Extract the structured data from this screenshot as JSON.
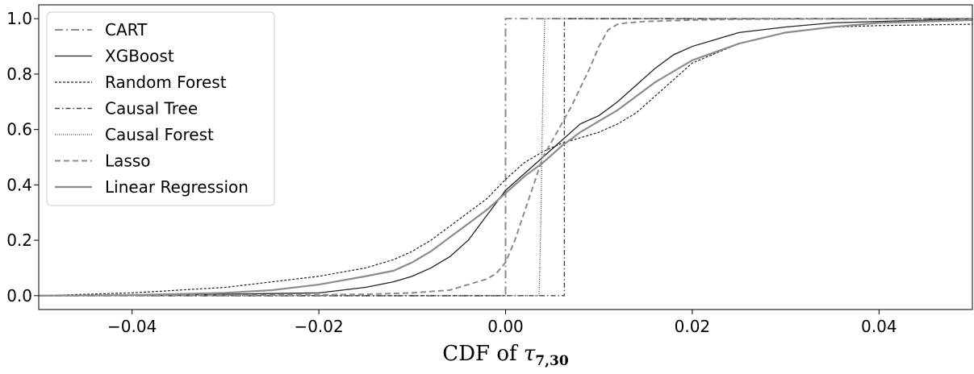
{
  "chart_data": {
    "type": "line",
    "title": "",
    "xlabel_prefix": "CDF of ",
    "xlabel_symbol": "τ",
    "xlabel_subscript": "7,30",
    "ylabel": "",
    "xlim": [
      -0.05,
      0.05
    ],
    "ylim": [
      -0.05,
      1.05
    ],
    "x_ticks": [
      -0.04,
      -0.02,
      0.0,
      0.02,
      0.04
    ],
    "x_tick_labels": [
      "−0.04",
      "−0.02",
      "0.00",
      "0.02",
      "0.04"
    ],
    "y_ticks": [
      0.0,
      0.2,
      0.4,
      0.6,
      0.8,
      1.0
    ],
    "y_tick_labels": [
      "0.0",
      "0.2",
      "0.4",
      "0.6",
      "0.8",
      "1.0"
    ],
    "grid": false,
    "legend_position": "top-left",
    "series": [
      {
        "name": "CART",
        "color": "#8c8c8c",
        "dash": "dashdot",
        "x": [
          -0.05,
          0.0,
          0.0,
          0.05
        ],
        "y": [
          0.0,
          0.0,
          1.0,
          1.0
        ]
      },
      {
        "name": "XGBoost",
        "color": "#222222",
        "dash": "solid",
        "x": [
          -0.05,
          -0.035,
          -0.02,
          -0.015,
          -0.012,
          -0.01,
          -0.008,
          -0.006,
          -0.004,
          -0.002,
          0.0,
          0.002,
          0.004,
          0.006,
          0.008,
          0.01,
          0.012,
          0.014,
          0.016,
          0.018,
          0.02,
          0.025,
          0.03,
          0.035,
          0.04,
          0.05
        ],
        "y": [
          0.0,
          0.003,
          0.01,
          0.03,
          0.05,
          0.07,
          0.1,
          0.14,
          0.2,
          0.29,
          0.38,
          0.44,
          0.5,
          0.56,
          0.62,
          0.65,
          0.7,
          0.76,
          0.82,
          0.87,
          0.9,
          0.95,
          0.97,
          0.985,
          0.99,
          1.0
        ]
      },
      {
        "name": "Random Forest",
        "color": "#222222",
        "dash": "dashed_fine",
        "x": [
          -0.05,
          -0.045,
          -0.04,
          -0.03,
          -0.025,
          -0.02,
          -0.015,
          -0.012,
          -0.01,
          -0.008,
          -0.006,
          -0.004,
          -0.002,
          0.0,
          0.002,
          0.004,
          0.006,
          0.008,
          0.01,
          0.012,
          0.014,
          0.016,
          0.018,
          0.02,
          0.025,
          0.03,
          0.035,
          0.04,
          0.05
        ],
        "y": [
          0.0,
          0.005,
          0.01,
          0.03,
          0.05,
          0.07,
          0.1,
          0.13,
          0.16,
          0.2,
          0.25,
          0.3,
          0.35,
          0.42,
          0.48,
          0.52,
          0.55,
          0.57,
          0.59,
          0.62,
          0.66,
          0.72,
          0.78,
          0.84,
          0.91,
          0.95,
          0.97,
          0.975,
          0.98
        ]
      },
      {
        "name": "Causal Tree",
        "color": "#444444",
        "dash": "dashdot_fine",
        "x": [
          -0.05,
          0.0063,
          0.0063,
          0.05
        ],
        "y": [
          0.0,
          0.0,
          1.0,
          1.0
        ]
      },
      {
        "name": "Causal Forest",
        "color": "#444444",
        "dash": "dotted",
        "x": [
          -0.05,
          0.0036,
          0.0038,
          0.004,
          0.0042,
          0.05
        ],
        "y": [
          0.0,
          0.0,
          0.3,
          0.75,
          1.0,
          1.0
        ]
      },
      {
        "name": "Lasso",
        "color": "#8c8c8c",
        "dash": "dashed",
        "x": [
          -0.05,
          -0.02,
          -0.015,
          -0.01,
          -0.008,
          -0.006,
          -0.004,
          -0.002,
          -0.001,
          0.0,
          0.001,
          0.002,
          0.003,
          0.004,
          0.005,
          0.006,
          0.007,
          0.008,
          0.009,
          0.01,
          0.011,
          0.012,
          0.013,
          0.015,
          0.02,
          0.025,
          0.03,
          0.04,
          0.05
        ],
        "y": [
          0.0,
          0.003,
          0.005,
          0.01,
          0.015,
          0.02,
          0.04,
          0.06,
          0.08,
          0.12,
          0.2,
          0.3,
          0.4,
          0.5,
          0.56,
          0.62,
          0.68,
          0.75,
          0.82,
          0.9,
          0.96,
          0.98,
          0.985,
          0.99,
          0.995,
          0.998,
          0.999,
          1.0,
          1.0
        ]
      },
      {
        "name": "Linear Regression",
        "color": "#8c8c8c",
        "dash": "solid_thick",
        "x": [
          -0.05,
          -0.04,
          -0.03,
          -0.025,
          -0.02,
          -0.015,
          -0.012,
          -0.01,
          -0.008,
          -0.006,
          -0.004,
          -0.002,
          0.0,
          0.002,
          0.004,
          0.006,
          0.008,
          0.01,
          0.012,
          0.014,
          0.016,
          0.018,
          0.02,
          0.025,
          0.03,
          0.035,
          0.04,
          0.05
        ],
        "y": [
          0.0,
          0.002,
          0.01,
          0.02,
          0.04,
          0.07,
          0.09,
          0.12,
          0.16,
          0.21,
          0.26,
          0.31,
          0.37,
          0.43,
          0.48,
          0.54,
          0.59,
          0.63,
          0.67,
          0.72,
          0.77,
          0.81,
          0.85,
          0.91,
          0.95,
          0.97,
          0.985,
          0.995
        ]
      }
    ]
  }
}
